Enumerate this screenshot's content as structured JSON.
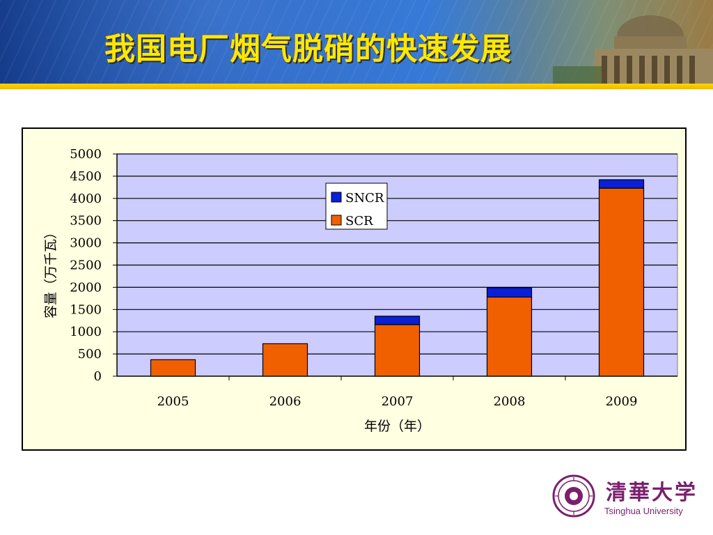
{
  "header": {
    "title": "我国电厂烟气脱硝的快速发展",
    "accent_color": "#ffe800",
    "stripe_color": "#ffd400"
  },
  "chart_data": {
    "type": "bar",
    "stacked": true,
    "categories": [
      "2005",
      "2006",
      "2007",
      "2008",
      "2009"
    ],
    "series": [
      {
        "name": "SCR",
        "values": [
          370,
          730,
          1160,
          1780,
          4230
        ],
        "color": "#f06000"
      },
      {
        "name": "SNCR",
        "values": [
          0,
          0,
          190,
          210,
          190
        ],
        "color": "#0a1fd8"
      }
    ],
    "xlabel": "年份（年）",
    "ylabel": "容量（万千瓦）",
    "ylim": [
      0,
      5000
    ],
    "yticks": [
      "0",
      "500",
      "1000",
      "1500",
      "2000",
      "2500",
      "3000",
      "3500",
      "4000",
      "4500",
      "5000"
    ],
    "grid": true,
    "legend": "top-center",
    "plot_background": "#ccccff",
    "chart_background": "#ffffe1"
  },
  "logo": {
    "name_cn": "清華大学",
    "name_en": "Tsinghua University",
    "color": "#7a1f6e"
  }
}
